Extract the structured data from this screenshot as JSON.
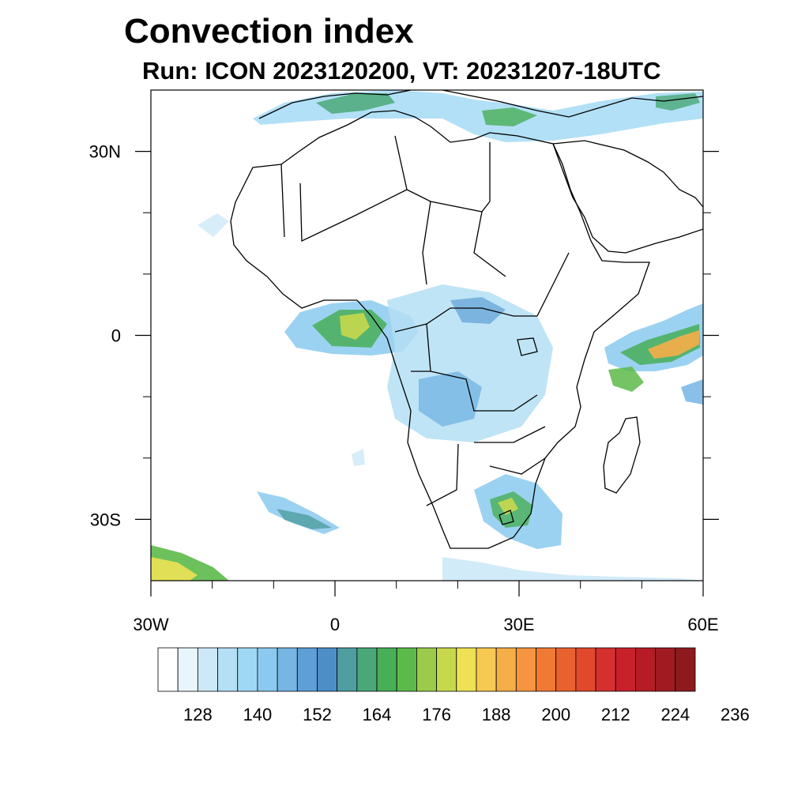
{
  "title": "Convection index",
  "subtitle": "Run: ICON 2023120200,  VT: 20231207-18UTC",
  "map": {
    "lon_range": [
      -30,
      60
    ],
    "lat_range": [
      -40,
      40
    ],
    "lon_tick_labels": [
      "30W",
      "0",
      "30E",
      "60E"
    ],
    "lon_ticks": [
      -30,
      0,
      30,
      60
    ],
    "lat_tick_labels": [
      "30N",
      "0",
      "30S"
    ],
    "lat_ticks": [
      30,
      0,
      -30
    ],
    "minor_lon_ticks": [
      -20,
      -10,
      10,
      20,
      40,
      50
    ],
    "minor_lat_ticks": [
      20,
      10,
      -10,
      -20
    ]
  },
  "colorbar": {
    "labels": [
      "128",
      "140",
      "152",
      "164",
      "176",
      "188",
      "200",
      "212",
      "224",
      "236"
    ],
    "colors": [
      "#ffffff",
      "#e9f5fc",
      "#cde9f8",
      "#b4dff5",
      "#9fd8f4",
      "#8bcaee",
      "#76b5e4",
      "#5e9fd6",
      "#4d8ec8",
      "#4f9ea0",
      "#4aa878",
      "#48af58",
      "#5cba4a",
      "#9ccb4c",
      "#c8d84c",
      "#eee254",
      "#f7c852",
      "#f6ae48",
      "#f59540",
      "#f07a34",
      "#ea6130",
      "#e0492c",
      "#d6302e",
      "#c8212c",
      "#b71c26",
      "#a01a22",
      "#8e1a1e"
    ]
  }
}
